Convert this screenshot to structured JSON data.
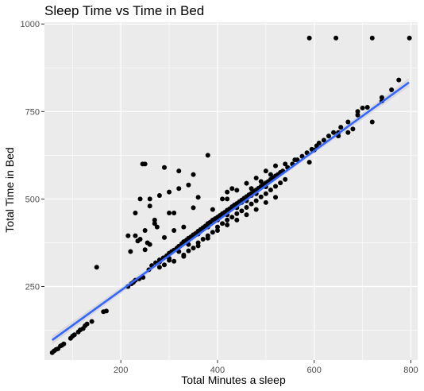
{
  "chart_data": {
    "type": "scatter",
    "title": "Sleep Time vs Time in Bed",
    "xlabel": "Total Minutes a sleep",
    "ylabel": "Total Time in Bed",
    "xlim": [
      42,
      814
    ],
    "ylim": [
      40,
      1005
    ],
    "x_ticks": [
      200,
      400,
      600,
      800
    ],
    "y_ticks": [
      250,
      500,
      750,
      1000
    ],
    "grid": true,
    "background": "#ebebeb",
    "point_color": "#000000",
    "trend_color": "#3366ff",
    "trend_band_color": "#cccccc",
    "trend_line": {
      "x": [
        58,
        796
      ],
      "y": [
        97,
        833
      ]
    },
    "points": [
      [
        58,
        61
      ],
      [
        62,
        66
      ],
      [
        66,
        70
      ],
      [
        70,
        72
      ],
      [
        75,
        80
      ],
      [
        78,
        82
      ],
      [
        82,
        86
      ],
      [
        96,
        102
      ],
      [
        100,
        108
      ],
      [
        104,
        112
      ],
      [
        112,
        120
      ],
      [
        116,
        126
      ],
      [
        122,
        130
      ],
      [
        126,
        138
      ],
      [
        130,
        143
      ],
      [
        140,
        150
      ],
      [
        164,
        178
      ],
      [
        170,
        180
      ],
      [
        215,
        250
      ],
      [
        222,
        258
      ],
      [
        226,
        262
      ],
      [
        230,
        268
      ],
      [
        238,
        272
      ],
      [
        246,
        276
      ],
      [
        258,
        298
      ],
      [
        264,
        310
      ],
      [
        272,
        318
      ],
      [
        280,
        326
      ],
      [
        288,
        332
      ],
      [
        295,
        338
      ],
      [
        300,
        345
      ],
      [
        305,
        350
      ],
      [
        310,
        354
      ],
      [
        316,
        360
      ],
      [
        320,
        365
      ],
      [
        326,
        372
      ],
      [
        330,
        378
      ],
      [
        336,
        383
      ],
      [
        340,
        388
      ],
      [
        345,
        392
      ],
      [
        350,
        398
      ],
      [
        355,
        402
      ],
      [
        360,
        408
      ],
      [
        365,
        413
      ],
      [
        370,
        418
      ],
      [
        375,
        423
      ],
      [
        380,
        430
      ],
      [
        385,
        434
      ],
      [
        390,
        440
      ],
      [
        395,
        444
      ],
      [
        400,
        448
      ],
      [
        405,
        453
      ],
      [
        410,
        458
      ],
      [
        415,
        462
      ],
      [
        420,
        468
      ],
      [
        425,
        472
      ],
      [
        430,
        478
      ],
      [
        435,
        483
      ],
      [
        440,
        487
      ],
      [
        445,
        492
      ],
      [
        450,
        497
      ],
      [
        455,
        502
      ],
      [
        460,
        507
      ],
      [
        465,
        512
      ],
      [
        470,
        516
      ],
      [
        475,
        522
      ],
      [
        480,
        526
      ],
      [
        485,
        531
      ],
      [
        490,
        536
      ],
      [
        495,
        541
      ],
      [
        500,
        546
      ],
      [
        505,
        550
      ],
      [
        510,
        556
      ],
      [
        515,
        560
      ],
      [
        520,
        566
      ],
      [
        525,
        570
      ],
      [
        530,
        576
      ],
      [
        535,
        580
      ],
      [
        545,
        590
      ],
      [
        555,
        600
      ],
      [
        565,
        612
      ],
      [
        575,
        622
      ],
      [
        585,
        632
      ],
      [
        595,
        642
      ],
      [
        605,
        652
      ],
      [
        620,
        668
      ],
      [
        630,
        680
      ],
      [
        640,
        690
      ],
      [
        655,
        705
      ],
      [
        670,
        720
      ],
      [
        690,
        740
      ],
      [
        710,
        762
      ],
      [
        740,
        790
      ],
      [
        760,
        812
      ],
      [
        775,
        840
      ],
      [
        300,
        325
      ],
      [
        330,
        340
      ],
      [
        360,
        375
      ],
      [
        380,
        395
      ],
      [
        400,
        420
      ],
      [
        410,
        430
      ],
      [
        420,
        440
      ],
      [
        430,
        448
      ],
      [
        440,
        458
      ],
      [
        450,
        466
      ],
      [
        460,
        476
      ],
      [
        470,
        486
      ],
      [
        480,
        495
      ],
      [
        490,
        506
      ],
      [
        500,
        515
      ],
      [
        510,
        526
      ],
      [
        520,
        536
      ],
      [
        530,
        546
      ],
      [
        540,
        556
      ],
      [
        350,
        360
      ],
      [
        370,
        385
      ],
      [
        390,
        405
      ],
      [
        440,
        440
      ],
      [
        460,
        455
      ],
      [
        480,
        470
      ],
      [
        500,
        490
      ],
      [
        520,
        505
      ],
      [
        320,
        350
      ],
      [
        340,
        370
      ],
      [
        470,
        530
      ],
      [
        490,
        550
      ],
      [
        510,
        570
      ],
      [
        420,
        500
      ],
      [
        440,
        525
      ],
      [
        460,
        545
      ],
      [
        480,
        560
      ],
      [
        500,
        580
      ],
      [
        520,
        595
      ],
      [
        470,
        510
      ],
      [
        450,
        490
      ],
      [
        280,
        305
      ],
      [
        290,
        312
      ],
      [
        310,
        322
      ],
      [
        330,
        336
      ],
      [
        340,
        352
      ],
      [
        360,
        366
      ],
      [
        380,
        388
      ],
      [
        400,
        410
      ],
      [
        420,
        426
      ],
      [
        360,
        400
      ],
      [
        380,
        420
      ],
      [
        400,
        440
      ],
      [
        420,
        455
      ],
      [
        440,
        475
      ],
      [
        460,
        495
      ],
      [
        480,
        515
      ],
      [
        500,
        535
      ],
      [
        540,
        600
      ],
      [
        560,
        612
      ],
      [
        590,
        605
      ],
      [
        610,
        660
      ],
      [
        650,
        690
      ],
      [
        690,
        750
      ],
      [
        700,
        760
      ],
      [
        720,
        720
      ],
      [
        740,
        780
      ],
      [
        650,
        680
      ],
      [
        670,
        690
      ],
      [
        680,
        700
      ],
      [
        600,
        640
      ],
      [
        150,
        305
      ],
      [
        380,
        625
      ],
      [
        250,
        600
      ],
      [
        245,
        600
      ],
      [
        290,
        590
      ],
      [
        320,
        580
      ],
      [
        350,
        570
      ],
      [
        300,
        460
      ],
      [
        230,
        460
      ],
      [
        260,
        480
      ],
      [
        280,
        510
      ],
      [
        300,
        520
      ],
      [
        320,
        530
      ],
      [
        340,
        540
      ],
      [
        270,
        440
      ],
      [
        350,
        475
      ],
      [
        230,
        395
      ],
      [
        240,
        385
      ],
      [
        260,
        370
      ],
      [
        290,
        390
      ],
      [
        310,
        410
      ],
      [
        330,
        420
      ],
      [
        220,
        350
      ],
      [
        250,
        355
      ],
      [
        360,
        505
      ],
      [
        300,
        330
      ],
      [
        280,
        320
      ],
      [
        390,
        470
      ],
      [
        410,
        500
      ],
      [
        420,
        520
      ],
      [
        430,
        530
      ],
      [
        250,
        410
      ],
      [
        270,
        430
      ],
      [
        240,
        500
      ],
      [
        260,
        500
      ],
      [
        310,
        460
      ],
      [
        215,
        395
      ],
      [
        235,
        380
      ],
      [
        255,
        375
      ],
      [
        275,
        420
      ],
      [
        590,
        960
      ],
      [
        645,
        960
      ],
      [
        720,
        960
      ],
      [
        797,
        960
      ]
    ]
  }
}
